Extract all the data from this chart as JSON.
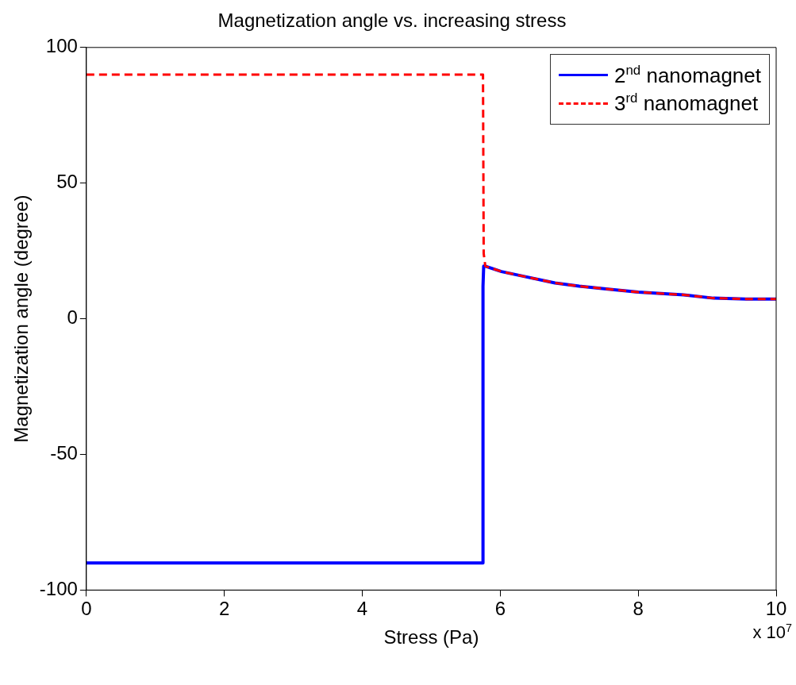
{
  "chart_data": {
    "type": "line",
    "title": "Magnetization angle vs. increasing stress",
    "xlabel": "Stress (Pa)",
    "ylabel": "Magnetization angle (degree)",
    "xlim": [
      0,
      10
    ],
    "xticks": [
      0,
      2,
      4,
      6,
      8,
      10
    ],
    "ylim": [
      -100,
      100
    ],
    "yticks": [
      -100,
      -50,
      0,
      50,
      100
    ],
    "legend": "top right",
    "annotations": [
      "x 10$^{7}$"
    ],
    "series": [
      {
        "name": "2$^{nd}$ nanomagnet",
        "color": "#0000ff",
        "line_style": "solid",
        "x": [
          0,
          5.75,
          5.75,
          5.76,
          5.784,
          6.017,
          6.367,
          6.794,
          7.144,
          7.533,
          8.0,
          8.66,
          9.09,
          9.56,
          10.0
        ],
        "values": [
          -90,
          -90,
          12,
          19.4,
          19.4,
          17.4,
          15.5,
          13.2,
          12.0,
          11.0,
          9.8,
          8.8,
          7.6,
          7.3,
          7.3
        ]
      },
      {
        "name": "3$^{rd}$ nanomagnet",
        "color": "#ff0000",
        "line_style": "dashed",
        "x": [
          0,
          5.75,
          5.76,
          5.784,
          6.017,
          6.367,
          6.794,
          7.144,
          7.533,
          8.0,
          8.66,
          9.09,
          9.56,
          10.0
        ],
        "values": [
          90,
          90,
          24,
          19.4,
          17.4,
          15.5,
          13.2,
          12.0,
          11.0,
          9.8,
          8.8,
          7.6,
          7.3,
          7.3
        ]
      }
    ]
  }
}
